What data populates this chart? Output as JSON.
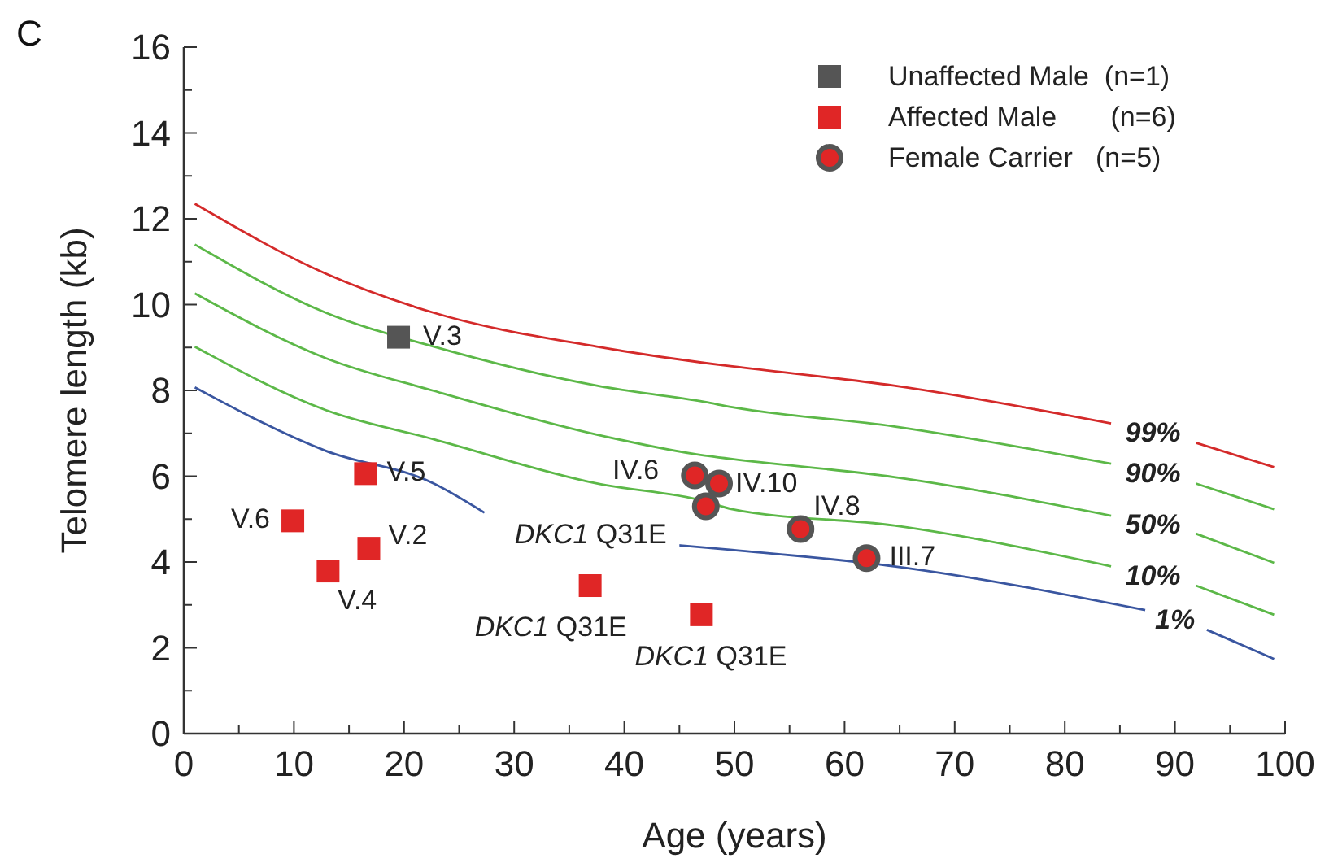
{
  "chart_data": {
    "type": "scatter",
    "xlabel": "Age (years)",
    "ylabel": "Telomere length (kb)",
    "xlim": [
      0,
      100
    ],
    "ylim": [
      0,
      16
    ],
    "xticks": [
      0,
      {
        "value": 5,
        "label": null
      },
      10,
      {
        "value": 15,
        "label": null
      },
      20,
      {
        "value": 25,
        "label": null
      },
      30,
      {
        "value": 35,
        "label": null
      },
      40,
      {
        "value": 45,
        "label": null
      },
      50,
      {
        "value": 55,
        "label": null
      },
      60,
      {
        "value": 65,
        "label": null
      },
      70,
      {
        "value": 75,
        "label": null
      },
      80,
      {
        "value": 85,
        "label": null
      },
      90,
      {
        "value": 95,
        "label": null
      },
      100
    ],
    "yticks": [
      0,
      {
        "value": 1,
        "label": null
      },
      2,
      {
        "value": 3,
        "label": null
      },
      4,
      {
        "value": 5,
        "label": null
      },
      6,
      {
        "value": 7,
        "label": null
      },
      8,
      {
        "value": 9,
        "label": null
      },
      10,
      {
        "value": 11,
        "label": null
      },
      12,
      {
        "value": 13,
        "label": null
      },
      14,
      {
        "value": 15,
        "label": null
      },
      16
    ],
    "grid": false,
    "legend": "top right",
    "series": [
      {
        "name": "99%",
        "type": "line",
        "color": "#d42a2a",
        "x": [
          1,
          12.9,
          22.7,
          37.5,
          47.3,
          49.8,
          64.5,
          84.2,
          88,
          91.9,
          99
        ],
        "values": [
          12.35,
          10.72,
          9.81,
          9.02,
          8.64,
          8.56,
          8.11,
          7.23,
          null,
          6.78,
          6.21
        ]
      },
      {
        "name": "90%",
        "type": "line",
        "color": "#5cb848",
        "x": [
          1,
          12.9,
          22.7,
          37.5,
          47.3,
          49.8,
          64.5,
          84.2,
          88,
          91.9,
          99
        ],
        "values": [
          11.4,
          9.81,
          9.02,
          8.11,
          7.73,
          7.61,
          7.16,
          6.29,
          null,
          5.83,
          5.23
        ]
      },
      {
        "name": "50%",
        "type": "line",
        "color": "#5cb848",
        "x": [
          1,
          12.9,
          22.7,
          37.5,
          47.3,
          49.8,
          64.5,
          84.2,
          88,
          91.9,
          99
        ],
        "values": [
          10.26,
          8.75,
          7.99,
          6.97,
          6.48,
          6.4,
          5.98,
          5.08,
          null,
          4.66,
          3.98
        ]
      },
      {
        "name": "10%",
        "type": "line",
        "color": "#5cb848",
        "x": [
          1,
          12.9,
          22.7,
          37.5,
          47.3,
          49.8,
          64.5,
          84.2,
          88,
          91.9,
          99
        ],
        "values": [
          9.02,
          7.54,
          6.86,
          5.83,
          5.42,
          5.23,
          4.85,
          3.9,
          null,
          3.45,
          2.77
        ]
      },
      {
        "name": "1%",
        "type": "line",
        "color": "#3a56a0",
        "x": [
          1,
          12.9,
          22.7,
          27.3,
          36,
          45,
          49.8,
          64.5,
          87.3,
          90,
          92.9,
          99
        ],
        "values": [
          8.07,
          6.59,
          5.83,
          5.15,
          null,
          4.39,
          4.28,
          3.9,
          2.88,
          null,
          2.42,
          1.74
        ]
      },
      {
        "name": "Unaffected Male  (n=1)",
        "marker": "square",
        "color": "#555555",
        "x": [
          19.5
        ],
        "values": [
          9.24
        ]
      },
      {
        "name": "Affected Male       (n=6)",
        "marker": "square",
        "color": "#e02626",
        "x": [
          16.5,
          9.9,
          16.8,
          13.1,
          36.9,
          47.0
        ],
        "values": [
          6.06,
          4.96,
          4.32,
          3.79,
          3.45,
          2.77
        ]
      },
      {
        "name": "Female Carrier   (n=5)",
        "marker": "circle",
        "color": "#e02626",
        "x": [
          46.4,
          48.6,
          47.4,
          56.0,
          62.0
        ],
        "values": [
          6.02,
          5.83,
          5.3,
          4.77,
          4.09
        ]
      }
    ],
    "annotations": [
      "C",
      {
        "text": "V.3",
        "x": 19.5,
        "y": 9.24
      },
      {
        "text": "V.5",
        "x": 16.5,
        "y": 6.06
      },
      {
        "text": "V.6",
        "x": 9.9,
        "y": 4.96
      },
      {
        "text": "V.2",
        "x": 16.8,
        "y": 4.32
      },
      {
        "text": "V.4",
        "x": 13.1,
        "y": 3.79
      },
      {
        "text": "DKC1 Q31E",
        "x": 47.4,
        "y": 5.3
      },
      {
        "text": "DKC1 Q31E",
        "x": 36.9,
        "y": 3.45
      },
      {
        "text": "DKC1 Q31E",
        "x": 47.0,
        "y": 2.77
      },
      {
        "text": "IV.6",
        "x": 46.4,
        "y": 6.02
      },
      {
        "text": "IV.10",
        "x": 48.6,
        "y": 5.83
      },
      {
        "text": "IV.8",
        "x": 56.0,
        "y": 4.77
      },
      {
        "text": "III.7",
        "x": 62.0,
        "y": 4.09
      }
    ]
  }
}
